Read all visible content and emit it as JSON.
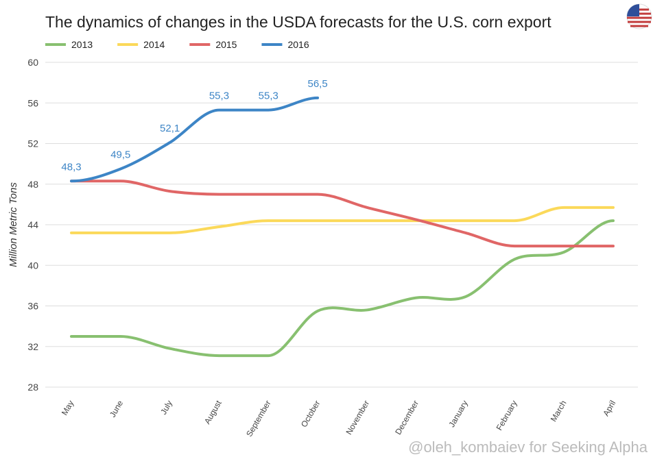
{
  "chart_data": {
    "type": "line",
    "title": "The dynamics of changes in the USDA forecasts for the U.S. corn export",
    "y_label": "Million Metric Tons",
    "credit": "@oleh_kombaiev for Seeking Alpha",
    "categories": [
      "May",
      "June",
      "July",
      "August",
      "September",
      "October",
      "November",
      "December",
      "January",
      "February",
      "March",
      "April"
    ],
    "series": [
      {
        "name": "2013",
        "color": "#88c070",
        "values": [
          33,
          33,
          31.8,
          31.1,
          31.1,
          35.5,
          35.6,
          36.8,
          36.9,
          40.6,
          41.3,
          44.4
        ]
      },
      {
        "name": "2014",
        "color": "#fbd95a",
        "values": [
          43.2,
          43.2,
          43.2,
          43.8,
          44.4,
          44.4,
          44.4,
          44.4,
          44.4,
          44.4,
          45.7,
          45.7
        ]
      },
      {
        "name": "2015",
        "color": "#e06666",
        "values": [
          48.3,
          48.3,
          47.3,
          47.0,
          47.0,
          47.0,
          45.7,
          44.5,
          43.2,
          41.9,
          41.9,
          41.9
        ]
      },
      {
        "name": "2016",
        "color": "#3d85c6",
        "values": [
          48.3,
          49.5,
          52.1,
          55.3,
          55.3,
          56.5,
          null,
          null,
          null,
          null,
          null,
          null
        ],
        "value_labels": [
          "48,3",
          "49,5",
          "52,1",
          "55,3",
          "55,3",
          "56,5",
          null,
          null,
          null,
          null,
          null,
          null
        ]
      }
    ],
    "ylim": [
      28,
      60
    ],
    "yticks": [
      28,
      32,
      36,
      40,
      44,
      48,
      52,
      56,
      60
    ],
    "grid": true
  }
}
